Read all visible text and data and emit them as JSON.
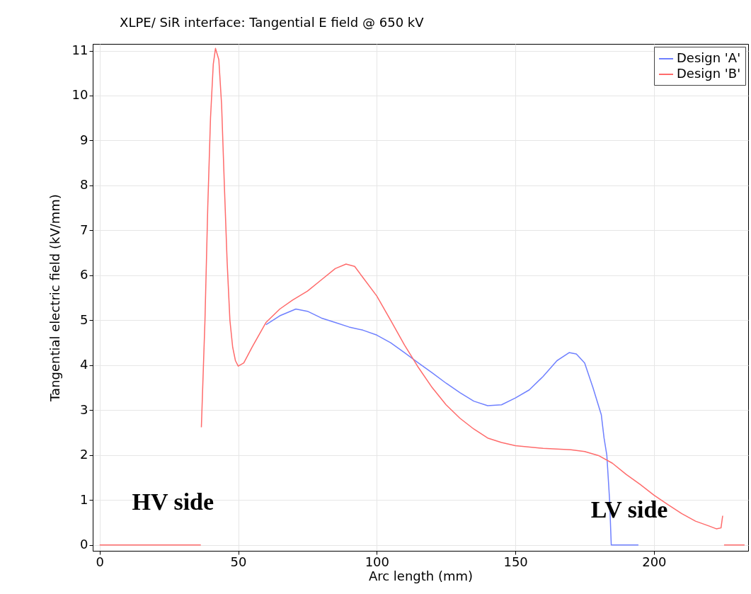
{
  "chart_data": {
    "type": "line",
    "title": "XLPE/ SiR interface: Tangential E field @ 650 kV",
    "xlabel": "Arc length (mm)",
    "ylabel": "Tangential electric field (kV/mm)",
    "annotations": [
      "HV side",
      "LV side"
    ],
    "xlim": [
      -2.5,
      234
    ],
    "ylim": [
      -0.13,
      11.15
    ],
    "xticks": [
      0,
      50,
      100,
      150,
      200
    ],
    "yticks": [
      0,
      1,
      2,
      3,
      4,
      5,
      6,
      7,
      8,
      9,
      10,
      11
    ],
    "grid": true,
    "legend": "top right",
    "line_style": "solid",
    "marker": "none",
    "series": [
      {
        "name": "Design 'A'",
        "color": "#6f80ff",
        "x": [
          60,
          65,
          70.8,
          75,
          80,
          85,
          90,
          95,
          100,
          105,
          110,
          115,
          120,
          125,
          130,
          135,
          140,
          145,
          150,
          155,
          160,
          165,
          169.4,
          172,
          175,
          178,
          181,
          182,
          183,
          184,
          184.6,
          194.4
        ],
        "values": [
          4.9,
          5.1,
          5.25,
          5.2,
          5.05,
          4.95,
          4.85,
          4.78,
          4.67,
          4.5,
          4.28,
          4.05,
          3.83,
          3.6,
          3.39,
          3.2,
          3.1,
          3.12,
          3.27,
          3.45,
          3.75,
          4.1,
          4.28,
          4.25,
          4.05,
          3.5,
          2.9,
          2.38,
          2.0,
          1.0,
          0,
          0
        ]
      },
      {
        "name": "Design 'B'",
        "color": "#ff6b6b",
        "x": [
          0,
          36.5,
          36.6,
          36.7,
          38,
          39,
          40,
          41,
          41.8,
          43,
          44,
          45,
          46,
          47,
          48,
          49,
          50,
          52,
          55,
          60,
          65,
          69.6,
          75,
          80,
          85,
          88.9,
          92,
          95,
          100,
          105,
          110,
          115,
          120,
          125,
          130,
          135,
          140,
          145,
          150,
          160,
          170,
          175,
          180,
          185,
          190,
          195,
          200,
          205,
          210,
          215,
          220,
          222.5,
          224.2,
          224.8,
          225,
          225.3,
          232.7
        ],
        "values": [
          0,
          0,
          null,
          2.62,
          5,
          7.5,
          9.5,
          10.7,
          11.05,
          10.8,
          9.8,
          8,
          6.3,
          5,
          4.4,
          4.1,
          3.98,
          4.05,
          4.4,
          4.95,
          5.25,
          5.45,
          5.65,
          5.9,
          6.15,
          6.25,
          6.2,
          5.95,
          5.54,
          5.0,
          4.45,
          3.95,
          3.5,
          3.12,
          2.82,
          2.58,
          2.38,
          2.28,
          2.21,
          2.15,
          2.12,
          2.08,
          1.99,
          1.82,
          1.57,
          1.35,
          1.11,
          0.9,
          0.7,
          0.53,
          0.42,
          0.36,
          0.38,
          0.65,
          null,
          0,
          0
        ]
      }
    ]
  }
}
